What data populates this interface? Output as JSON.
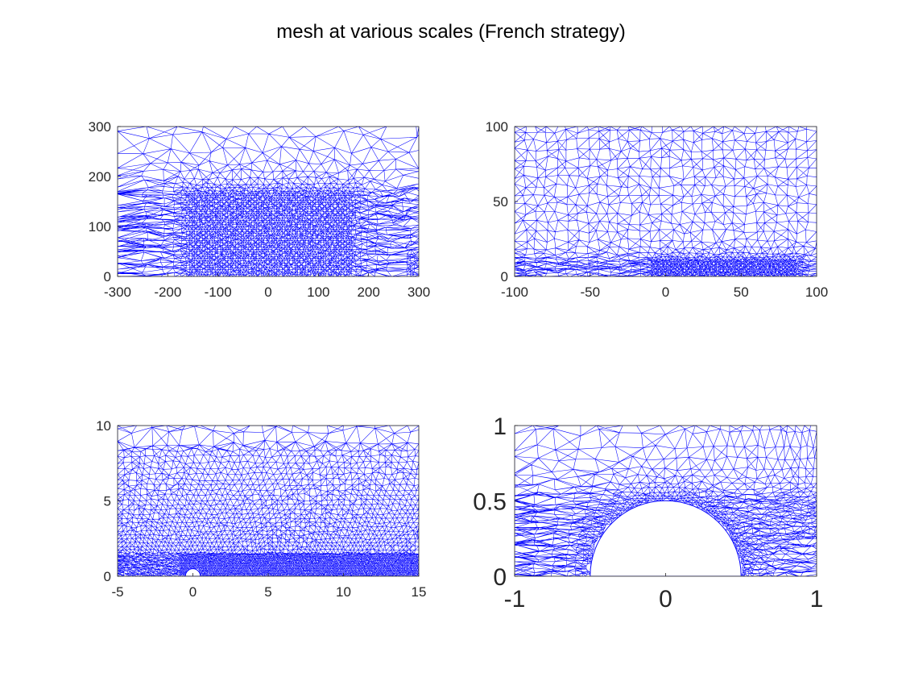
{
  "figure": {
    "title": "mesh at various scales (French strategy)"
  },
  "chart_data": [
    {
      "type": "mesh",
      "xlim": [
        -300,
        300
      ],
      "ylim": [
        0,
        300
      ],
      "xticks": [
        "-300",
        "-200",
        "-100",
        "0",
        "100",
        "200",
        "300"
      ],
      "yticks": [
        "0",
        "100",
        "200",
        "300"
      ],
      "grid": false,
      "mesh_color": "#0000ff",
      "refined_region": {
        "x": [
          -160,
          160
        ],
        "y": [
          0,
          165
        ]
      }
    },
    {
      "type": "mesh",
      "xlim": [
        -100,
        100
      ],
      "ylim": [
        0,
        100
      ],
      "xticks": [
        "-100",
        "-50",
        "0",
        "50",
        "100"
      ],
      "yticks": [
        "0",
        "50",
        "100"
      ],
      "grid": false,
      "mesh_color": "#0000ff",
      "refined_region": {
        "x": [
          -10,
          85
        ],
        "y": [
          0,
          10
        ]
      }
    },
    {
      "type": "mesh",
      "xlim": [
        -5,
        15
      ],
      "ylim": [
        0,
        10
      ],
      "xticks": [
        "-5",
        "0",
        "5",
        "10",
        "15"
      ],
      "yticks": [
        "0",
        "5",
        "10"
      ],
      "grid": false,
      "mesh_color": "#0000ff",
      "hole": {
        "cx": 0,
        "cy": 0,
        "r": 0.5
      }
    },
    {
      "type": "mesh",
      "xlim": [
        -1,
        1
      ],
      "ylim": [
        0,
        1
      ],
      "xticks": [
        "-1",
        "0",
        "1"
      ],
      "yticks": [
        "0",
        "0.5",
        "1"
      ],
      "grid": false,
      "mesh_color": "#0000ff",
      "hole": {
        "cx": 0,
        "cy": 0,
        "r": 0.5
      }
    }
  ]
}
